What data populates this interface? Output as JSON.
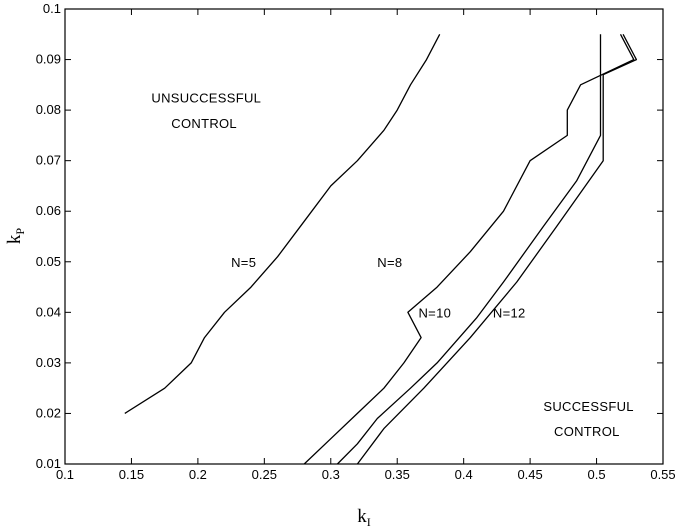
{
  "chart_data": {
    "type": "line",
    "xlabel": "k",
    "xlabel_sub": "I",
    "ylabel": "k",
    "ylabel_sub": "P",
    "xlim": [
      0.1,
      0.55
    ],
    "ylim": [
      0.01,
      0.1
    ],
    "xticks": [
      0.1,
      0.15,
      0.2,
      0.25,
      0.3,
      0.35,
      0.4,
      0.45,
      0.5,
      0.55
    ],
    "xtick_labels": [
      "0.1",
      "0.15",
      "0.2",
      "0.25",
      "0.3",
      "0.35",
      "0.4",
      "0.45",
      "0.5",
      "0.55"
    ],
    "yticks": [
      0.01,
      0.02,
      0.03,
      0.04,
      0.05,
      0.06,
      0.07,
      0.08,
      0.09,
      0.1
    ],
    "ytick_labels": [
      "0.01",
      "0.02",
      "0.03",
      "0.04",
      "0.05",
      "0.06",
      "0.07",
      "0.08",
      "0.09",
      "0.1"
    ],
    "grid": false,
    "series": [
      {
        "name": "N=5",
        "label_at": [
          0.225,
          0.05
        ],
        "points": [
          [
            0.145,
            0.02
          ],
          [
            0.175,
            0.025
          ],
          [
            0.195,
            0.03
          ],
          [
            0.205,
            0.035
          ],
          [
            0.22,
            0.04
          ],
          [
            0.24,
            0.045
          ],
          [
            0.26,
            0.051
          ],
          [
            0.28,
            0.058
          ],
          [
            0.3,
            0.065
          ],
          [
            0.32,
            0.07
          ],
          [
            0.34,
            0.076
          ],
          [
            0.35,
            0.08
          ],
          [
            0.36,
            0.085
          ],
          [
            0.372,
            0.09
          ],
          [
            0.382,
            0.095
          ]
        ]
      },
      {
        "name": "N=8",
        "label_at": [
          0.335,
          0.05
        ],
        "points": [
          [
            0.28,
            0.01
          ],
          [
            0.3,
            0.015
          ],
          [
            0.32,
            0.02
          ],
          [
            0.34,
            0.025
          ],
          [
            0.355,
            0.03
          ],
          [
            0.368,
            0.035
          ],
          [
            0.358,
            0.04
          ],
          [
            0.38,
            0.045
          ],
          [
            0.405,
            0.052
          ],
          [
            0.43,
            0.06
          ],
          [
            0.45,
            0.07
          ],
          [
            0.478,
            0.075
          ],
          [
            0.478,
            0.08
          ],
          [
            0.488,
            0.085
          ],
          [
            0.528,
            0.09
          ],
          [
            0.518,
            0.095
          ]
        ]
      },
      {
        "name": "N=10",
        "label_at": [
          0.366,
          0.04
        ],
        "points": [
          [
            0.305,
            0.01
          ],
          [
            0.32,
            0.014
          ],
          [
            0.335,
            0.019
          ],
          [
            0.36,
            0.025
          ],
          [
            0.38,
            0.03
          ],
          [
            0.41,
            0.039
          ],
          [
            0.43,
            0.046
          ],
          [
            0.46,
            0.057
          ],
          [
            0.485,
            0.066
          ],
          [
            0.503,
            0.075
          ],
          [
            0.503,
            0.095
          ]
        ]
      },
      {
        "name": "N=12",
        "label_at": [
          0.422,
          0.04
        ],
        "points": [
          [
            0.32,
            0.01
          ],
          [
            0.34,
            0.017
          ],
          [
            0.37,
            0.025
          ],
          [
            0.405,
            0.035
          ],
          [
            0.44,
            0.046
          ],
          [
            0.47,
            0.057
          ],
          [
            0.505,
            0.07
          ],
          [
            0.505,
            0.087
          ],
          [
            0.53,
            0.09
          ],
          [
            0.52,
            0.095
          ]
        ]
      }
    ],
    "annotations": [
      {
        "text": "UNSUCCESSFUL",
        "at": [
          0.165,
          0.0825
        ]
      },
      {
        "text": "CONTROL",
        "at": [
          0.18,
          0.0775
        ]
      },
      {
        "text": "SUCCESSFUL",
        "at": [
          0.46,
          0.0215
        ]
      },
      {
        "text": "CONTROL",
        "at": [
          0.468,
          0.0165
        ]
      }
    ]
  }
}
